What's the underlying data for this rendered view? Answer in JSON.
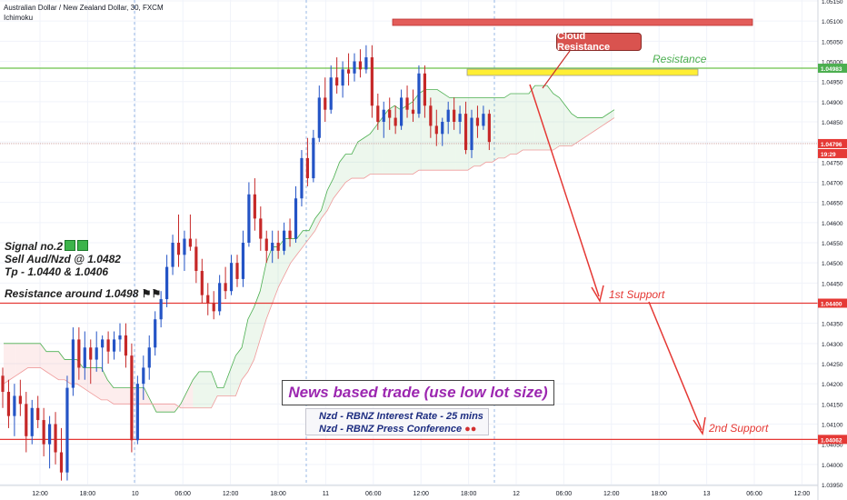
{
  "header": {
    "symbol_line": "Australian Dollar / New Zealand Dollar, 30, FXCM",
    "indicator": "Ichimoku"
  },
  "signal": {
    "line1": "Signal no.2",
    "line2": "Sell Aud/Nzd @ 1.0482",
    "line3": "Tp - 1.0440 & 1.0406",
    "resistance_note": "Resistance around 1.0498"
  },
  "annotations": {
    "cloud_resistance": "Cloud Resistance",
    "resistance": "Resistance",
    "support1": "1st Support",
    "support2": "2nd Support",
    "news_title": "News based trade (use low lot size)",
    "news_line1": "Nzd - RBNZ Interest Rate - 25 mins",
    "news_line2": "Nzd - RBNZ Press Conference"
  },
  "colors": {
    "up": "#2454c6",
    "down": "#c62828",
    "support_line": "#e53935",
    "resistance_line": "#6cc24a",
    "price_line": "#c89a9a",
    "cloud_green": "#4caf50",
    "cloud_red": "#ef9a9a",
    "news_title": "#9c27b0"
  },
  "chart_data": {
    "type": "candlestick",
    "ylim": [
      1.0395,
      1.0515
    ],
    "y_ticks": [
      "1.05150",
      "1.05100",
      "1.05050",
      "1.05000",
      "1.04950",
      "1.04900",
      "1.04850",
      "1.04800",
      "1.04750",
      "1.04700",
      "1.04650",
      "1.04600",
      "1.04550",
      "1.04500",
      "1.04450",
      "1.04400",
      "1.04350",
      "1.04300",
      "1.04250",
      "1.04200",
      "1.04150",
      "1.04100",
      "1.04050",
      "1.04000",
      "1.03950"
    ],
    "x_ticks": [
      "12:00",
      "18:00",
      "10",
      "06:00",
      "12:00",
      "18:00",
      "11",
      "06:00",
      "12:00",
      "18:00",
      "12",
      "06:00",
      "12:00",
      "18:00",
      "13",
      "06:00",
      "12:00"
    ],
    "price_labels": {
      "resistance": "1.04983",
      "current": "1.04796",
      "countdown": "19:29",
      "support1": "1.04400",
      "support2": "1.04062"
    },
    "levels": {
      "resistance": 1.04983,
      "current": 1.04796,
      "support1": 1.044,
      "support2": 1.04062
    },
    "candles": [
      [
        1.0422,
        1.0424,
        1.0414,
        1.0418
      ],
      [
        1.0418,
        1.0421,
        1.0409,
        1.0412
      ],
      [
        1.0412,
        1.042,
        1.0407,
        1.0417
      ],
      [
        1.0417,
        1.0421,
        1.0412,
        1.0415
      ],
      [
        1.0415,
        1.0418,
        1.0403,
        1.0407
      ],
      [
        1.0407,
        1.0416,
        1.0405,
        1.0414
      ],
      [
        1.0414,
        1.0417,
        1.0409,
        1.0411
      ],
      [
        1.0411,
        1.0414,
        1.0402,
        1.0405
      ],
      [
        1.0405,
        1.0412,
        1.0399,
        1.041
      ],
      [
        1.041,
        1.0413,
        1.04,
        1.0403
      ],
      [
        1.0403,
        1.0409,
        1.0396,
        1.0398
      ],
      [
        1.0398,
        1.0422,
        1.0396,
        1.0419
      ],
      [
        1.0419,
        1.0434,
        1.0417,
        1.0431
      ],
      [
        1.0431,
        1.0434,
        1.0421,
        1.0424
      ],
      [
        1.0424,
        1.0433,
        1.0421,
        1.0429
      ],
      [
        1.0429,
        1.0431,
        1.042,
        1.0426
      ],
      [
        1.0426,
        1.0433,
        1.0423,
        1.0429
      ],
      [
        1.0429,
        1.0432,
        1.0423,
        1.0431
      ],
      [
        1.0431,
        1.0433,
        1.0425,
        1.0428
      ],
      [
        1.0428,
        1.0433,
        1.0426,
        1.0431
      ],
      [
        1.0431,
        1.0435,
        1.0428,
        1.0432
      ],
      [
        1.0432,
        1.0435,
        1.0424,
        1.0427
      ],
      [
        1.0427,
        1.043,
        1.0403,
        1.0406
      ],
      [
        1.0406,
        1.0422,
        1.0405,
        1.042
      ],
      [
        1.042,
        1.0427,
        1.0416,
        1.0424
      ],
      [
        1.0424,
        1.0432,
        1.0421,
        1.0429
      ],
      [
        1.0429,
        1.0438,
        1.0427,
        1.0436
      ],
      [
        1.0436,
        1.0443,
        1.0434,
        1.0441
      ],
      [
        1.0441,
        1.0452,
        1.0439,
        1.0449
      ],
      [
        1.0449,
        1.0457,
        1.0447,
        1.0455
      ],
      [
        1.0455,
        1.0462,
        1.0449,
        1.0452
      ],
      [
        1.0452,
        1.0458,
        1.0448,
        1.0456
      ],
      [
        1.0456,
        1.0462,
        1.0453,
        1.0454
      ],
      [
        1.0454,
        1.0456,
        1.0445,
        1.0448
      ],
      [
        1.0448,
        1.0451,
        1.044,
        1.0442
      ],
      [
        1.0442,
        1.0445,
        1.0437,
        1.044
      ],
      [
        1.044,
        1.0443,
        1.0436,
        1.0438
      ],
      [
        1.0438,
        1.0447,
        1.0437,
        1.0445
      ],
      [
        1.0445,
        1.0449,
        1.0441,
        1.0443
      ],
      [
        1.0443,
        1.0452,
        1.0442,
        1.045
      ],
      [
        1.045,
        1.0452,
        1.0444,
        1.0446
      ],
      [
        1.0446,
        1.0458,
        1.0444,
        1.0455
      ],
      [
        1.0455,
        1.047,
        1.0454,
        1.0467
      ],
      [
        1.0467,
        1.0471,
        1.0458,
        1.0461
      ],
      [
        1.0461,
        1.0464,
        1.0453,
        1.0456
      ],
      [
        1.0456,
        1.0458,
        1.045,
        1.0453
      ],
      [
        1.0453,
        1.0458,
        1.045,
        1.0455
      ],
      [
        1.0455,
        1.0458,
        1.0451,
        1.0453
      ],
      [
        1.0453,
        1.046,
        1.0452,
        1.0458
      ],
      [
        1.0458,
        1.0461,
        1.0454,
        1.0456
      ],
      [
        1.0456,
        1.0469,
        1.0455,
        1.0466
      ],
      [
        1.0466,
        1.0478,
        1.0464,
        1.0476
      ],
      [
        1.0476,
        1.0481,
        1.0469,
        1.0471
      ],
      [
        1.0471,
        1.0483,
        1.047,
        1.0481
      ],
      [
        1.0481,
        1.0494,
        1.048,
        1.0491
      ],
      [
        1.0491,
        1.0496,
        1.0485,
        1.0488
      ],
      [
        1.0488,
        1.0499,
        1.0487,
        1.0496
      ],
      [
        1.0496,
        1.0501,
        1.0492,
        1.0494
      ],
      [
        1.0494,
        1.05,
        1.0491,
        1.0498
      ],
      [
        1.0498,
        1.0502,
        1.0494,
        1.0497
      ],
      [
        1.0497,
        1.0502,
        1.0495,
        1.05
      ],
      [
        1.05,
        1.0503,
        1.0496,
        1.0498
      ],
      [
        1.0498,
        1.0504,
        1.0497,
        1.0501
      ],
      [
        1.0501,
        1.0504,
        1.0486,
        1.0489
      ],
      [
        1.0489,
        1.0492,
        1.0483,
        1.0485
      ],
      [
        1.0485,
        1.049,
        1.0481,
        1.0488
      ],
      [
        1.0488,
        1.0491,
        1.0483,
        1.0486
      ],
      [
        1.0486,
        1.0489,
        1.0482,
        1.0484
      ],
      [
        1.0484,
        1.0493,
        1.0483,
        1.0491
      ],
      [
        1.0491,
        1.0494,
        1.0486,
        1.0488
      ],
      [
        1.0488,
        1.0493,
        1.0485,
        1.0487
      ],
      [
        1.0487,
        1.0499,
        1.0486,
        1.0497
      ],
      [
        1.0497,
        1.0499,
        1.0486,
        1.0489
      ],
      [
        1.0489,
        1.0491,
        1.0481,
        1.0484
      ],
      [
        1.0484,
        1.0488,
        1.0479,
        1.0482
      ],
      [
        1.0482,
        1.0486,
        1.0479,
        1.0485
      ],
      [
        1.0485,
        1.049,
        1.0482,
        1.0488
      ],
      [
        1.0488,
        1.0491,
        1.0483,
        1.0485
      ],
      [
        1.0485,
        1.0489,
        1.0482,
        1.0487
      ],
      [
        1.0487,
        1.049,
        1.0477,
        1.0478
      ],
      [
        1.0478,
        1.0488,
        1.0476,
        1.0486
      ],
      [
        1.0486,
        1.0489,
        1.0481,
        1.0484
      ],
      [
        1.0484,
        1.0489,
        1.0483,
        1.0487
      ],
      [
        1.0487,
        1.0488,
        1.0478,
        1.048
      ]
    ],
    "cloud_top": [
      1.043,
      1.043,
      1.043,
      1.043,
      1.043,
      1.043,
      1.043,
      1.0428,
      1.0428,
      1.0428,
      1.0426,
      1.0426,
      1.0426,
      1.0424,
      1.0424,
      1.0424,
      1.0424,
      1.0421,
      1.0419,
      1.0419,
      1.0419,
      1.0419,
      1.0419,
      1.0419,
      1.0416,
      1.0413,
      1.0413,
      1.0413,
      1.0413,
      1.0415,
      1.0418,
      1.0421,
      1.0423,
      1.0423,
      1.0423,
      1.0419,
      1.0419,
      1.0423,
      1.0427,
      1.0429,
      1.0436,
      1.0439,
      1.0443,
      1.045,
      1.0454,
      1.0454,
      1.0456,
      1.0456,
      1.0456,
      1.0458,
      1.0458,
      1.0461,
      1.0463,
      1.0468,
      1.0471,
      1.0475,
      1.0477,
      1.0477,
      1.048,
      1.0481,
      1.0482,
      1.0484,
      1.0486,
      1.0488,
      1.0489,
      1.0488,
      1.0489,
      1.049,
      1.0492,
      1.0493,
      1.0493,
      1.0493,
      1.0492,
      1.0491,
      1.0491,
      1.0491,
      1.0491,
      1.0491,
      1.0491,
      1.0491,
      1.0491,
      1.0491,
      1.0491,
      1.0492,
      1.0492,
      1.0492,
      1.0492,
      1.0494,
      1.0494,
      1.0494,
      1.0492,
      1.0491,
      1.0489,
      1.0487,
      1.0486,
      1.0486,
      1.0486,
      1.0486,
      1.0486,
      1.0487,
      1.0488
    ],
    "cloud_bottom": [
      1.042,
      1.0421,
      1.0422,
      1.0423,
      1.0424,
      1.0424,
      1.0424,
      1.0423,
      1.0422,
      1.0421,
      1.0421,
      1.042,
      1.042,
      1.0419,
      1.0418,
      1.0417,
      1.0416,
      1.0416,
      1.0415,
      1.0415,
      1.0415,
      1.0415,
      1.0415,
      1.0415,
      1.0415,
      1.0415,
      1.0415,
      1.0415,
      1.0415,
      1.0414,
      1.0414,
      1.0414,
      1.0414,
      1.0414,
      1.0414,
      1.0417,
      1.0417,
      1.0417,
      1.0417,
      1.0421,
      1.0423,
      1.0426,
      1.0431,
      1.0436,
      1.044,
      1.0444,
      1.0447,
      1.045,
      1.0452,
      1.0454,
      1.0456,
      1.0458,
      1.0461,
      1.0463,
      1.0466,
      1.0468,
      1.047,
      1.0471,
      1.0471,
      1.0471,
      1.0472,
      1.0472,
      1.0472,
      1.0472,
      1.0472,
      1.0472,
      1.0472,
      1.0472,
      1.0473,
      1.0473,
      1.0473,
      1.0473,
      1.0473,
      1.0473,
      1.0473,
      1.0473,
      1.0473,
      1.0474,
      1.0474,
      1.0475,
      1.0475,
      1.0476,
      1.0476,
      1.0477,
      1.0477,
      1.0478,
      1.0478,
      1.0478,
      1.0478,
      1.0478,
      1.0478,
      1.0479,
      1.0479,
      1.0479,
      1.048,
      1.0481,
      1.0482,
      1.0483,
      1.0484,
      1.0485,
      1.0486
    ]
  }
}
